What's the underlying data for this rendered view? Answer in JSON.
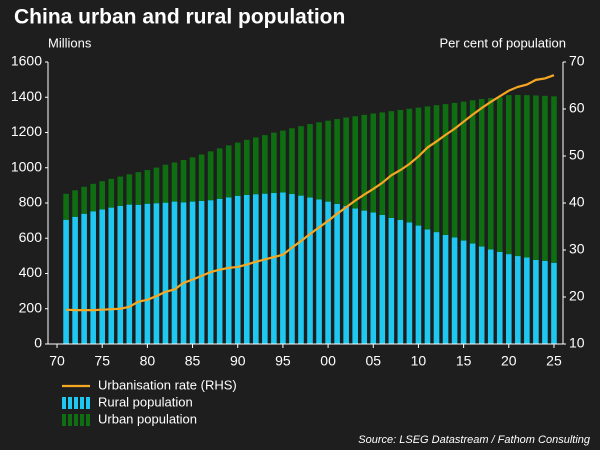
{
  "chart_data": {
    "type": "bar",
    "title": "China urban and rural population",
    "y_label": "Millions",
    "y2_label": "Per cent of population",
    "source": "Source: LSEG Datastream / Fathom Consulting",
    "x": [
      1971,
      1972,
      1973,
      1974,
      1975,
      1976,
      1977,
      1978,
      1979,
      1980,
      1981,
      1982,
      1983,
      1984,
      1985,
      1986,
      1987,
      1988,
      1989,
      1990,
      1991,
      1992,
      1993,
      1994,
      1995,
      1996,
      1997,
      1998,
      1999,
      2000,
      2001,
      2002,
      2003,
      2004,
      2005,
      2006,
      2007,
      2008,
      2009,
      2010,
      2011,
      2012,
      2013,
      2014,
      2015,
      2016,
      2017,
      2018,
      2019,
      2020,
      2021,
      2022,
      2023,
      2024,
      2025
    ],
    "xlim": [
      1969,
      2026
    ],
    "xticks": [
      {
        "value": 1970,
        "label": "70"
      },
      {
        "value": 1975,
        "label": "75"
      },
      {
        "value": 1980,
        "label": "80"
      },
      {
        "value": 1985,
        "label": "85"
      },
      {
        "value": 1990,
        "label": "90"
      },
      {
        "value": 1995,
        "label": "95"
      },
      {
        "value": 2000,
        "label": "00"
      },
      {
        "value": 2005,
        "label": "05"
      },
      {
        "value": 2010,
        "label": "10"
      },
      {
        "value": 2015,
        "label": "15"
      },
      {
        "value": 2020,
        "label": "20"
      },
      {
        "value": 2025,
        "label": "25"
      }
    ],
    "ylim": [
      0,
      1600
    ],
    "yticks": [
      0,
      200,
      400,
      600,
      800,
      1000,
      1200,
      1400,
      1600
    ],
    "y2lim": [
      10,
      70
    ],
    "y2ticks": [
      10,
      20,
      30,
      40,
      50,
      60,
      70
    ],
    "stacked": true,
    "series": [
      {
        "name": "Urbanisation rate (RHS)",
        "type": "line",
        "axis": "y2",
        "color": "#f5a623",
        "values": [
          17.3,
          17.2,
          17.2,
          17.2,
          17.3,
          17.4,
          17.5,
          17.9,
          19.0,
          19.4,
          20.2,
          21.1,
          21.6,
          23.0,
          23.7,
          24.5,
          25.3,
          25.8,
          26.2,
          26.4,
          26.9,
          27.5,
          28.0,
          28.5,
          29.0,
          30.5,
          31.9,
          33.4,
          34.8,
          36.2,
          37.7,
          39.1,
          40.5,
          41.8,
          43.0,
          44.3,
          45.9,
          47.0,
          48.3,
          49.9,
          51.8,
          53.1,
          54.5,
          55.8,
          57.3,
          58.8,
          60.2,
          61.5,
          62.7,
          63.9,
          64.7,
          65.2,
          66.2,
          66.5,
          67.2
        ]
      },
      {
        "name": "Rural population",
        "type": "bar",
        "color": "#1ec8f0",
        "values": [
          705,
          722,
          739,
          753,
          764,
          774,
          784,
          791,
          790,
          796,
          799,
          802,
          808,
          804,
          808,
          812,
          816,
          824,
          832,
          841,
          846,
          850,
          853,
          857,
          860,
          851,
          842,
          831,
          820,
          808,
          795,
          783,
          769,
          757,
          746,
          732,
          715,
          704,
          690,
          672,
          650,
          635,
          619,
          605,
          587,
          570,
          553,
          537,
          522,
          510,
          499,
          491,
          477,
          472,
          461
        ]
      },
      {
        "name": "Urban population",
        "type": "bar",
        "color": "#0f6e12",
        "values": [
          147,
          150,
          153,
          156,
          160,
          163,
          166,
          172,
          185,
          191,
          202,
          215,
          222,
          240,
          251,
          263,
          277,
          286,
          295,
          302,
          312,
          322,
          332,
          342,
          351,
          373,
          394,
          417,
          438,
          459,
          481,
          502,
          523,
          543,
          562,
          582,
          606,
          624,
          645,
          669,
          698,
          720,
          742,
          763,
          788,
          813,
          837,
          858,
          878,
          902,
          914,
          921,
          933,
          936,
          944
        ]
      }
    ]
  }
}
